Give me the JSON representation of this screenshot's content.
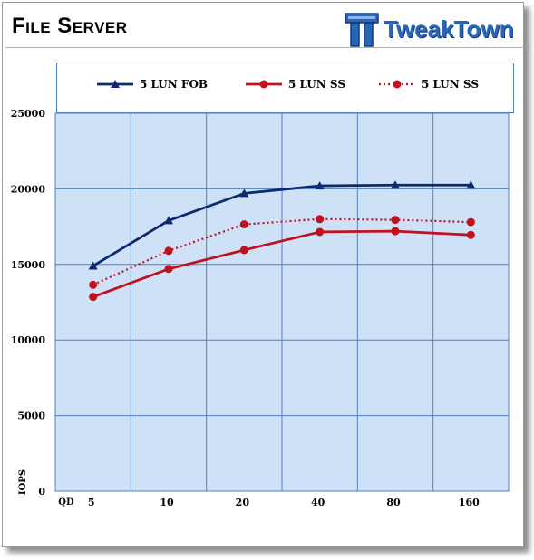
{
  "header": {
    "title": "File Server",
    "logo_text": "TweakTown"
  },
  "colors": {
    "plot_background": "#cfe1f7",
    "grid": "#4f81bd",
    "series_fob": "#0e2a6e",
    "series_ss": "#c0111f",
    "logo_blue": "#2a66b8"
  },
  "chart_data": {
    "type": "line",
    "title": "File Server",
    "xlabel": "QD",
    "ylabel": "IOPS",
    "categories": [
      "5",
      "10",
      "20",
      "40",
      "80",
      "160"
    ],
    "ylim": [
      0,
      25000
    ],
    "yticks": [
      0,
      5000,
      10000,
      15000,
      20000,
      25000
    ],
    "grid": true,
    "legend_position": "top",
    "series": [
      {
        "name": "5 LUN FOB",
        "color": "#0e2a6e",
        "marker": "triangle",
        "dashed": false,
        "values": [
          14900,
          17900,
          19700,
          20200,
          20250,
          20250
        ]
      },
      {
        "name": "5 LUN SS",
        "color": "#c0111f",
        "marker": "circle",
        "dashed": false,
        "values": [
          12850,
          14700,
          15950,
          17150,
          17200,
          16950
        ]
      },
      {
        "name": "5 LUN SS",
        "color": "#c0111f",
        "marker": "circle",
        "dashed": true,
        "values": [
          13650,
          15900,
          17650,
          18000,
          17950,
          17800
        ]
      }
    ]
  }
}
